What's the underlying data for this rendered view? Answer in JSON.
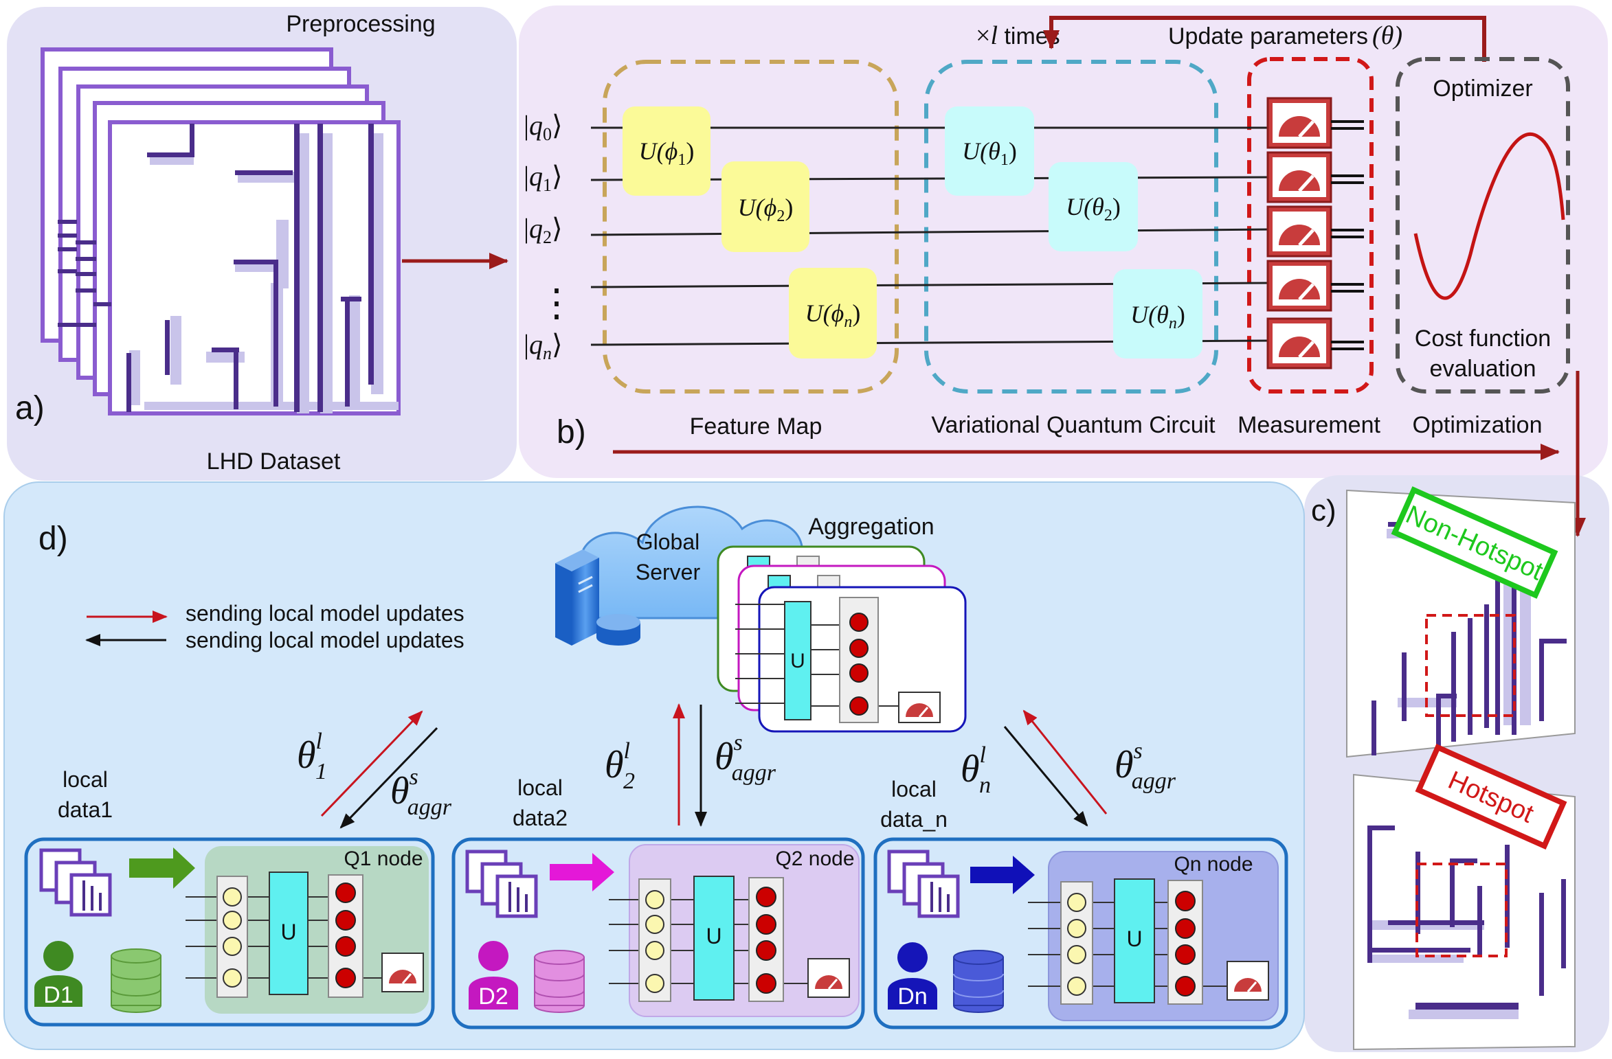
{
  "panel_a": {
    "letter": "a)",
    "title": "Preprocessing",
    "caption": "LHD Dataset"
  },
  "panel_b": {
    "letter": "b)",
    "repeat_label": "×",
    "repeat_var": "l",
    "repeat_suffix": " times",
    "update_label": "Update parameters",
    "update_param": "(θ)",
    "qubits": [
      "q0",
      "q1",
      "q2",
      "qn"
    ],
    "qubit_labels": [
      {
        "base": "q",
        "sub": "0"
      },
      {
        "base": "q",
        "sub": "1"
      },
      {
        "base": "q",
        "sub": "2"
      },
      {
        "base": "q",
        "sub": "n"
      }
    ],
    "dots": "⋮",
    "feature_gates": [
      {
        "fn": "U(",
        "sym": "ϕ",
        "sub": "1",
        "close": ")"
      },
      {
        "fn": "U(",
        "sym": "ϕ",
        "sub": "2",
        "close": ")"
      },
      {
        "fn": "U(",
        "sym": "ϕ",
        "sub": "n",
        "close": ")"
      }
    ],
    "variational_gates": [
      {
        "fn": "U(",
        "sym": "θ",
        "sub": "1",
        "close": ")"
      },
      {
        "fn": "U(",
        "sym": "θ",
        "sub": "2",
        "close": ")"
      },
      {
        "fn": "U(",
        "sym": "θ",
        "sub": "n",
        "close": ")"
      }
    ],
    "optimizer_title": "Optimizer",
    "cost_line1": "Cost function",
    "cost_line2": "evaluation",
    "stage_labels": [
      "Feature Map",
      "Variational Quantum Circuit",
      "Measurement",
      "Optimization"
    ]
  },
  "panel_c": {
    "letter": "c)",
    "non_hotspot": "Non-Hotspot",
    "hotspot": "Hotspot"
  },
  "panel_d": {
    "letter": "d)",
    "server_line1": "Global",
    "server_line2": "Server",
    "aggregation": "Aggregation",
    "legend": [
      "sending local model updates",
      "sending local model updates"
    ],
    "u_label": "U",
    "theta_local": [
      {
        "sym": "θ",
        "sup": "l",
        "sub": "1"
      },
      {
        "sym": "θ",
        "sup": "l",
        "sub": "2"
      },
      {
        "sym": "θ",
        "sup": "l",
        "sub": "n"
      }
    ],
    "theta_aggr": {
      "sym": "θ",
      "sup": "s",
      "sub": "aggr"
    },
    "nodes": [
      {
        "data_line1": "local",
        "data_line2": "data1",
        "node_label": "Q1 node",
        "user": "D1"
      },
      {
        "data_line1": "local",
        "data_line2": "data2",
        "node_label": "Q2 node",
        "user": "D2"
      },
      {
        "data_line1": "local",
        "data_line2": "data_n",
        "node_label": "Qn node",
        "user": "Dn"
      }
    ]
  },
  "colors": {
    "panel_a_bg": "#e3e1f5",
    "panel_b_bg": "#f0e6f8",
    "panel_c_bg": "#e2e2f4",
    "panel_d_bg": "#d4e8fa",
    "flow_arrow": "#9b1b1b",
    "feature_gate": "#fbfa98",
    "variational_gate": "#c8fbfb",
    "measurement": "#c83c3c",
    "layout_line": "#4a2d8a",
    "node1": "#3f8a22",
    "node2": "#c418c0",
    "node3": "#1515b8"
  }
}
